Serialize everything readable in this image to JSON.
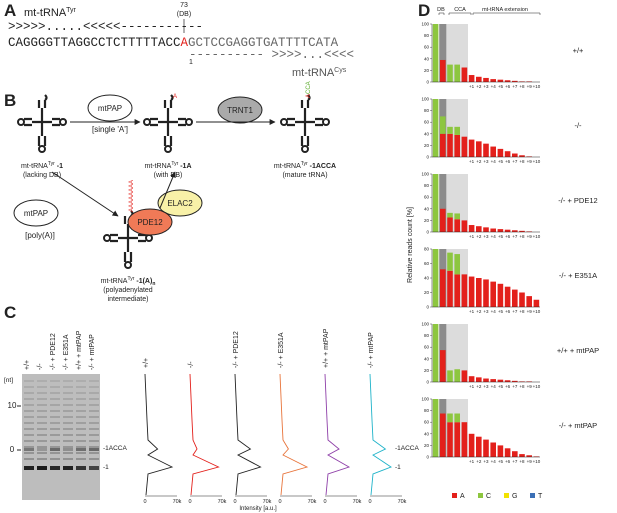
{
  "panels": {
    "A": {
      "label": "A",
      "title": "mt-tRNA",
      "title_sup": "Tyr",
      "pos": "73",
      "pos_note": "(DB)",
      "structure_top": ">>>>>.....<<<<<-----------",
      "seq_left": "CAGGGGTTAGGCCTCTTTTTACC",
      "seq_mark": "A",
      "seq_right": "GCTCCGAGGTGATTTTCATA",
      "pos1": "1",
      "structure_bottom": "----------  >>>>...<<<<",
      "cys": "mt-tRNA",
      "cys_sup": "Cys"
    },
    "B": {
      "label": "B",
      "enzymes": {
        "mtpap_single": "mtPAP",
        "single_note": "[single 'A']",
        "trnt1": "TRNT1",
        "mtpap_poly": "mtPAP",
        "poly_note": "[poly(A)]",
        "elac2": "ELAC2",
        "pde12": "PDE12"
      },
      "tails": {
        "with_db": "A",
        "mature_a": "A",
        "mature_cca": "CCA",
        "poly": "AAAAAAAA"
      },
      "nodes": [
        {
          "name": "mt-tRNA",
          "sup": "Tyr",
          "suffix": " -1",
          "note": "(lacking DB)"
        },
        {
          "name": "mt-tRNA",
          "sup": "Tyr",
          "suffix": " -1A",
          "note": "(with DB)"
        },
        {
          "name": "mt-tRNA",
          "sup": "Tyr",
          "suffix": " -1ACCA",
          "note": "(mature tRNA)"
        },
        {
          "name": "mt-tRNA",
          "sup": "Tyr",
          "suffix": " -1(A)",
          "sub": "n",
          "note": "(polyadenylated",
          "note2": "intermediate)"
        }
      ]
    },
    "C": {
      "label": "C",
      "lanes": [
        "+/+",
        "-/-",
        "-/- + PDE12",
        "-/- + E351A",
        "+/+ + mtPAP",
        "-/- + mtPAP"
      ],
      "unit": "[nt]",
      "gel_ticks": [
        "10",
        "0"
      ],
      "band_upper": "-1ACCA",
      "band_lower": "-1",
      "trace_ticks": [
        "0",
        "70k"
      ],
      "trace_xlabel": "Intensity [a.u.]"
    },
    "D": {
      "label": "D",
      "regions": [
        "DB",
        "CCA",
        "mt-tRNA extension"
      ],
      "ylabel": "Relative reads count [%]",
      "legend": [
        {
          "name": "A",
          "color": "#e3201b"
        },
        {
          "name": "C",
          "color": "#8dc63f"
        },
        {
          "name": "G",
          "color": "#f2e200"
        },
        {
          "name": "T",
          "color": "#3b6fb6"
        }
      ]
    }
  },
  "chart_data": [
    {
      "type": "bar",
      "title": "+/+",
      "categories": [
        null,
        null,
        null,
        null,
        null,
        "+1",
        "+2",
        "+3",
        "+4",
        "+5",
        "+6",
        "+7",
        "+8",
        "+9",
        "+10"
      ],
      "series": [
        {
          "name": "A",
          "color": "#e3201b",
          "values": [
            0,
            38,
            0,
            0,
            25,
            12,
            9,
            7,
            5,
            4,
            3,
            2,
            1,
            1,
            0
          ]
        },
        {
          "name": "C",
          "color": "#8dc63f",
          "values": [
            100,
            0,
            30,
            30,
            0,
            0,
            0,
            0,
            0,
            0,
            0,
            0,
            0,
            0,
            0
          ]
        }
      ],
      "ylim": [
        0,
        100
      ],
      "yticks": [
        0,
        20,
        40,
        60,
        80,
        100
      ]
    },
    {
      "type": "bar",
      "title": "-/-",
      "categories": [
        null,
        null,
        null,
        null,
        null,
        "+1",
        "+2",
        "+3",
        "+4",
        "+5",
        "+6",
        "+7",
        "+8",
        "+9",
        "+10"
      ],
      "series": [
        {
          "name": "A",
          "color": "#e3201b",
          "values": [
            0,
            40,
            40,
            38,
            35,
            30,
            27,
            23,
            18,
            14,
            10,
            6,
            3,
            1,
            0
          ]
        },
        {
          "name": "C",
          "color": "#8dc63f",
          "values": [
            100,
            30,
            12,
            14,
            0,
            0,
            0,
            0,
            0,
            0,
            0,
            0,
            0,
            0,
            0
          ]
        }
      ],
      "ylim": [
        0,
        100
      ],
      "yticks": [
        0,
        20,
        40,
        60,
        80,
        100
      ]
    },
    {
      "type": "bar",
      "title": "-/- + PDE12",
      "categories": [
        null,
        null,
        null,
        null,
        null,
        "+1",
        "+2",
        "+3",
        "+4",
        "+5",
        "+6",
        "+7",
        "+8",
        "+9",
        "+10"
      ],
      "series": [
        {
          "name": "A",
          "color": "#e3201b",
          "values": [
            0,
            40,
            25,
            22,
            20,
            12,
            10,
            8,
            6,
            5,
            4,
            3,
            2,
            1,
            0
          ]
        },
        {
          "name": "C",
          "color": "#8dc63f",
          "values": [
            100,
            0,
            8,
            10,
            0,
            0,
            0,
            0,
            0,
            0,
            0,
            0,
            0,
            0,
            0
          ]
        }
      ],
      "ylim": [
        0,
        100
      ],
      "yticks": [
        0,
        20,
        40,
        60,
        80,
        100
      ]
    },
    {
      "type": "bar",
      "title": "-/- + E351A",
      "categories": [
        null,
        null,
        null,
        null,
        null,
        "+1",
        "+2",
        "+3",
        "+4",
        "+5",
        "+6",
        "+7",
        "+8",
        "+9",
        "+10"
      ],
      "series": [
        {
          "name": "A",
          "color": "#e3201b",
          "values": [
            0,
            52,
            50,
            45,
            45,
            42,
            40,
            38,
            35,
            32,
            28,
            24,
            20,
            15,
            10
          ]
        },
        {
          "name": "C",
          "color": "#8dc63f",
          "values": [
            80,
            0,
            25,
            28,
            0,
            0,
            0,
            0,
            0,
            0,
            0,
            0,
            0,
            0,
            0
          ]
        }
      ],
      "ylim": [
        0,
        80
      ],
      "yticks": [
        0,
        20,
        40,
        60,
        80
      ]
    },
    {
      "type": "bar",
      "title": "+/+ + mtPAP",
      "categories": [
        null,
        null,
        null,
        null,
        null,
        "+1",
        "+2",
        "+3",
        "+4",
        "+5",
        "+6",
        "+7",
        "+8",
        "+9",
        "+10"
      ],
      "series": [
        {
          "name": "A",
          "color": "#e3201b",
          "values": [
            0,
            55,
            0,
            0,
            20,
            10,
            8,
            6,
            5,
            4,
            3,
            2,
            1,
            1,
            0
          ]
        },
        {
          "name": "C",
          "color": "#8dc63f",
          "values": [
            100,
            0,
            20,
            22,
            0,
            0,
            0,
            0,
            0,
            0,
            0,
            0,
            0,
            0,
            0
          ]
        }
      ],
      "ylim": [
        0,
        100
      ],
      "yticks": [
        0,
        20,
        40,
        60,
        80,
        100
      ]
    },
    {
      "type": "bar",
      "title": "-/- + mtPAP",
      "categories": [
        null,
        null,
        null,
        null,
        null,
        "+1",
        "+2",
        "+3",
        "+4",
        "+5",
        "+6",
        "+7",
        "+8",
        "+9",
        "+10"
      ],
      "series": [
        {
          "name": "A",
          "color": "#e3201b",
          "values": [
            0,
            75,
            60,
            60,
            60,
            40,
            35,
            30,
            25,
            20,
            15,
            10,
            5,
            3,
            1
          ]
        },
        {
          "name": "C",
          "color": "#8dc63f",
          "values": [
            100,
            0,
            15,
            15,
            0,
            0,
            0,
            0,
            0,
            0,
            0,
            0,
            0,
            0,
            0
          ]
        }
      ],
      "ylim": [
        0,
        100
      ],
      "yticks": [
        0,
        20,
        40,
        60,
        80,
        100
      ]
    }
  ]
}
